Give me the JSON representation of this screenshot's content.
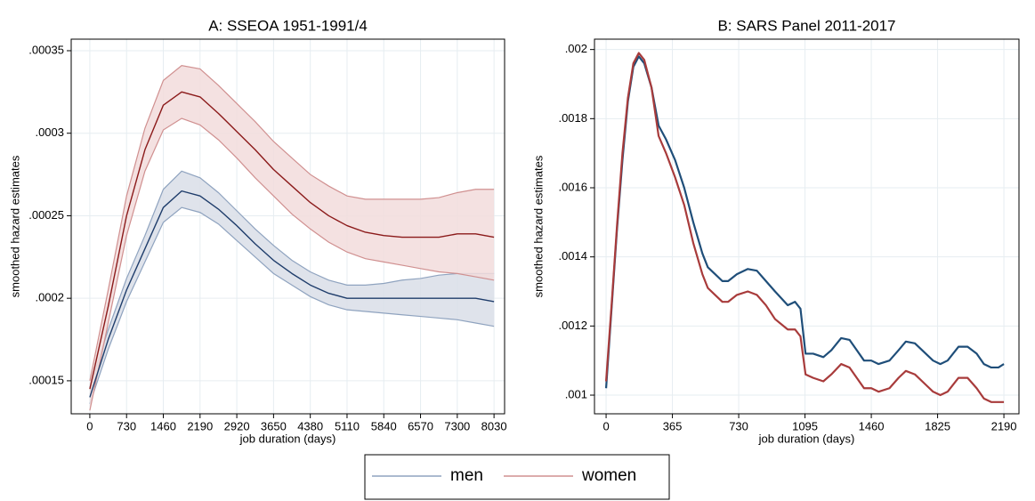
{
  "chart_data": [
    {
      "type": "line",
      "title": "A: SSEOA 1951-1991/4",
      "xlabel": "job duration (days)",
      "ylabel": "smoothed hazard estimates",
      "x": [
        0,
        365,
        730,
        1095,
        1460,
        1825,
        2190,
        2555,
        2920,
        3285,
        3650,
        4015,
        4380,
        4745,
        5110,
        5475,
        5840,
        6205,
        6570,
        6935,
        7300,
        7665,
        8030
      ],
      "series": [
        {
          "name": "men",
          "color": "#1f3d6b",
          "ci_color": "#8fa3bf",
          "fill": "#d9dee7",
          "values": [
            0.00014,
            0.000175,
            0.000205,
            0.00023,
            0.000255,
            0.000265,
            0.000262,
            0.000254,
            0.000244,
            0.000233,
            0.000223,
            0.000215,
            0.000208,
            0.000203,
            0.0002,
            0.0002,
            0.0002,
            0.0002,
            0.0002,
            0.0002,
            0.0002,
            0.0002,
            0.000198
          ],
          "lower": [
            0.000136,
            0.000169,
            0.000198,
            0.000222,
            0.000246,
            0.000255,
            0.000252,
            0.000245,
            0.000235,
            0.000225,
            0.000215,
            0.000208,
            0.000201,
            0.000196,
            0.000193,
            0.000192,
            0.000191,
            0.00019,
            0.000189,
            0.000188,
            0.000187,
            0.000185,
            0.000183
          ],
          "upper": [
            0.000146,
            0.000181,
            0.000212,
            0.000238,
            0.000266,
            0.000277,
            0.000273,
            0.000264,
            0.000253,
            0.000242,
            0.000232,
            0.000223,
            0.000216,
            0.000211,
            0.000208,
            0.000208,
            0.000209,
            0.000211,
            0.000212,
            0.000214,
            0.000215,
            0.000215,
            0.000215
          ]
        },
        {
          "name": "women",
          "color": "#8b1a1a",
          "ci_color": "#d09090",
          "fill": "#f2dcdc",
          "values": [
            0.000145,
            0.000195,
            0.00025,
            0.00029,
            0.000317,
            0.000325,
            0.000322,
            0.000312,
            0.000301,
            0.00029,
            0.000278,
            0.000268,
            0.000258,
            0.00025,
            0.000244,
            0.00024,
            0.000238,
            0.000237,
            0.000237,
            0.000237,
            0.000239,
            0.000239,
            0.000237
          ],
          "lower": [
            0.000132,
            0.000185,
            0.000238,
            0.000277,
            0.000302,
            0.000309,
            0.000305,
            0.000296,
            0.000285,
            0.000273,
            0.000262,
            0.000251,
            0.000242,
            0.000234,
            0.000228,
            0.000224,
            0.000222,
            0.00022,
            0.000218,
            0.000216,
            0.000215,
            0.000213,
            0.000211
          ],
          "upper": [
            0.00015,
            0.000205,
            0.000262,
            0.000303,
            0.000332,
            0.000341,
            0.000339,
            0.000329,
            0.000318,
            0.000307,
            0.000295,
            0.000285,
            0.000275,
            0.000268,
            0.000262,
            0.00026,
            0.00026,
            0.00026,
            0.00026,
            0.000261,
            0.000264,
            0.000266,
            0.000266
          ]
        }
      ],
      "xlim": [
        -370,
        8240
      ],
      "ylim": [
        0.00013,
        0.000357
      ],
      "xticks": [
        0,
        730,
        1460,
        2190,
        2920,
        3650,
        4380,
        5110,
        5840,
        6570,
        7300,
        8030
      ],
      "yticks": [
        {
          "value": 0.00015,
          "label": ".00015"
        },
        {
          "value": 0.0002,
          "label": ".0002"
        },
        {
          "value": 0.00025,
          "label": ".00025"
        },
        {
          "value": 0.0003,
          "label": ".0003"
        },
        {
          "value": 0.00035,
          "label": ".00035"
        }
      ],
      "grid": true
    },
    {
      "type": "line",
      "title": "B: SARS Panel 2011-2017",
      "xlabel": "job duration (days)",
      "ylabel": "smoothed hazard estimates",
      "x": [
        0,
        30,
        60,
        90,
        120,
        150,
        180,
        210,
        250,
        289,
        330,
        380,
        430,
        480,
        530,
        560,
        600,
        640,
        672,
        720,
        780,
        830,
        880,
        930,
        1000,
        1040,
        1070,
        1098,
        1140,
        1196,
        1240,
        1294,
        1340,
        1380,
        1420,
        1460,
        1500,
        1560,
        1610,
        1650,
        1700,
        1760,
        1800,
        1840,
        1880,
        1940,
        1990,
        2040,
        2080,
        2120,
        2160,
        2190
      ],
      "series": [
        {
          "name": "men",
          "color": "#1f4e79",
          "values": [
            0.00102,
            0.00125,
            0.00148,
            0.00168,
            0.00185,
            0.00195,
            0.00198,
            0.00196,
            0.00189,
            0.00178,
            0.00174,
            0.00168,
            0.0016,
            0.0015,
            0.00141,
            0.00137,
            0.00135,
            0.00133,
            0.00133,
            0.00135,
            0.001365,
            0.00136,
            0.00133,
            0.0013,
            0.00126,
            0.00127,
            0.00125,
            0.00112,
            0.00112,
            0.00111,
            0.00113,
            0.001165,
            0.00116,
            0.00113,
            0.0011,
            0.0011,
            0.00109,
            0.0011,
            0.00113,
            0.001155,
            0.00115,
            0.00112,
            0.0011,
            0.00109,
            0.0011,
            0.00114,
            0.00114,
            0.00112,
            0.00109,
            0.00108,
            0.00108,
            0.00109
          ]
        },
        {
          "name": "women",
          "color": "#a83b3b",
          "values": [
            0.00104,
            0.00126,
            0.00149,
            0.0017,
            0.00186,
            0.00196,
            0.00199,
            0.00197,
            0.00189,
            0.00175,
            0.0017,
            0.00163,
            0.00155,
            0.00144,
            0.00135,
            0.00131,
            0.00129,
            0.00127,
            0.00127,
            0.00129,
            0.0013,
            0.00129,
            0.00126,
            0.00122,
            0.00119,
            0.00119,
            0.00117,
            0.00106,
            0.00105,
            0.00104,
            0.00106,
            0.00109,
            0.00108,
            0.00105,
            0.00102,
            0.00102,
            0.00101,
            0.00102,
            0.00105,
            0.00107,
            0.00106,
            0.00103,
            0.00101,
            0.001,
            0.00101,
            0.00105,
            0.00105,
            0.00102,
            0.00099,
            0.00098,
            0.00098,
            0.00098
          ]
        }
      ],
      "xlim": [
        -64,
        2273
      ],
      "ylim": [
        0.000946,
        0.00203
      ],
      "xticks": [
        0,
        365,
        730,
        1095,
        1460,
        1825,
        2190
      ],
      "yticks": [
        {
          "value": 0.001,
          "label": ".001"
        },
        {
          "value": 0.0012,
          "label": ".0012"
        },
        {
          "value": 0.0014,
          "label": ".0014"
        },
        {
          "value": 0.0016,
          "label": ".0016"
        },
        {
          "value": 0.0018,
          "label": ".0018"
        },
        {
          "value": 0.002,
          "label": ".002"
        }
      ],
      "grid": true
    }
  ]
}
